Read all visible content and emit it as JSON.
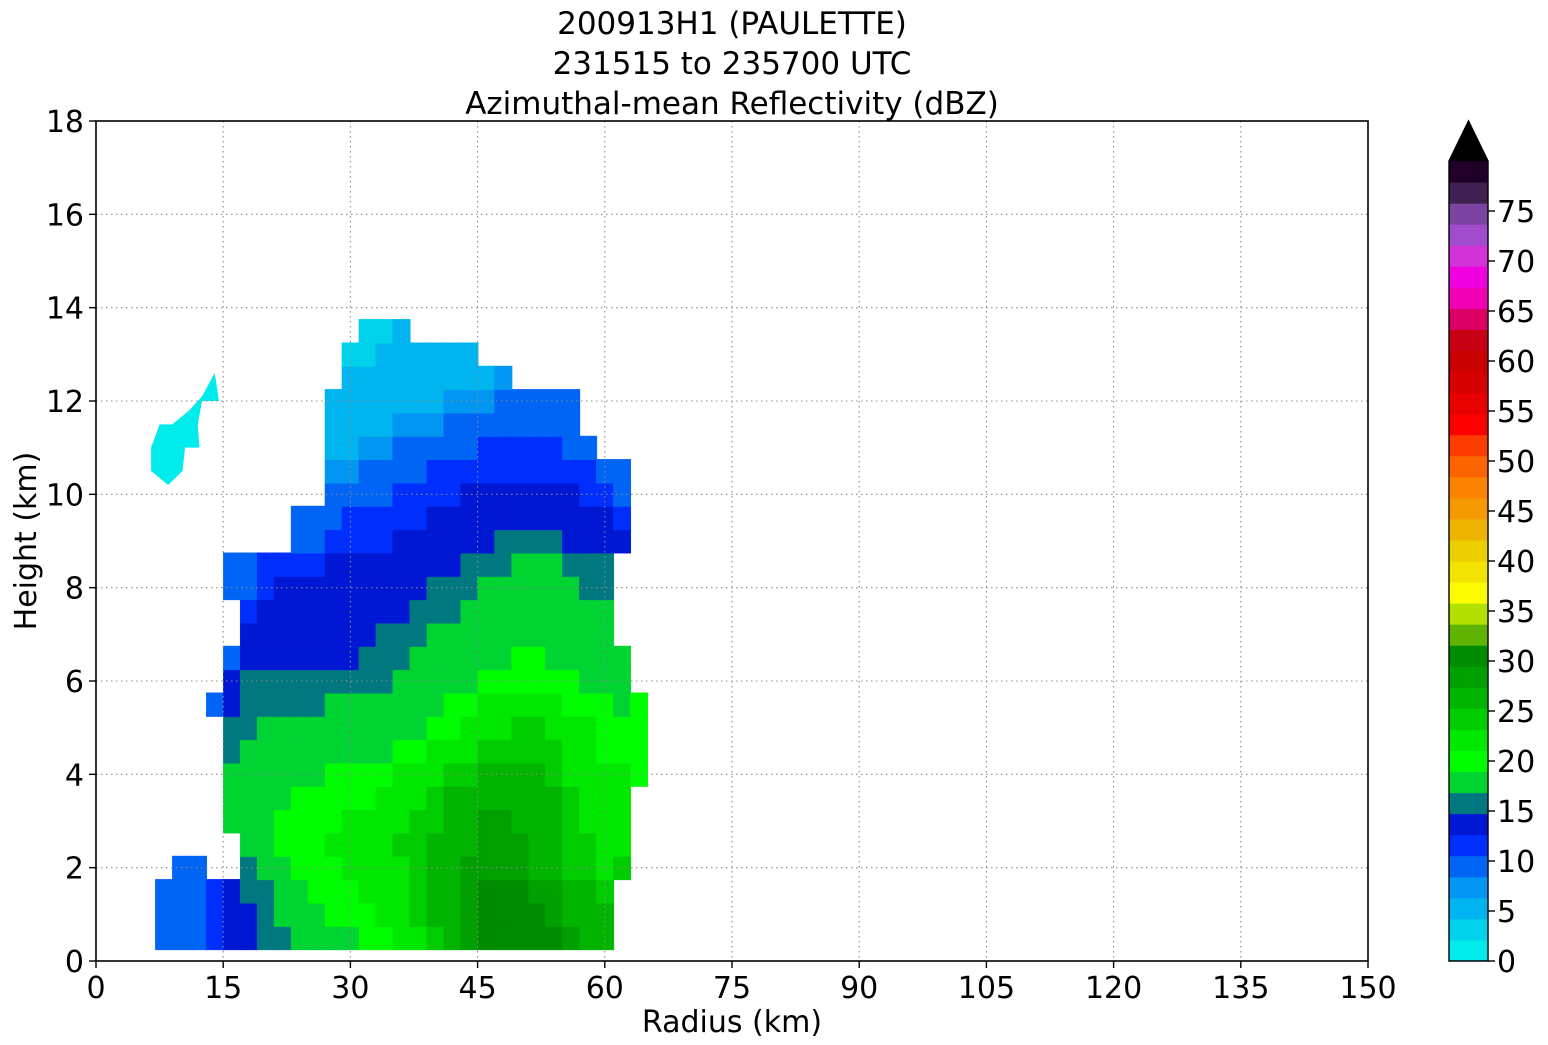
{
  "chart_data": {
    "type": "heatmap",
    "title_lines": [
      "200913H1 (PAULETTE)",
      "231515 to 235700 UTC",
      "Azimuthal-mean Reflectivity (dBZ)"
    ],
    "xlabel": "Radius (km)",
    "ylabel": "Height (km)",
    "xlim": [
      0,
      150
    ],
    "ylim": [
      0,
      18
    ],
    "xticks": [
      "0",
      "15",
      "30",
      "45",
      "60",
      "75",
      "90",
      "105",
      "120",
      "135",
      "150"
    ],
    "yticks": [
      "0",
      "2",
      "4",
      "6",
      "8",
      "10",
      "12",
      "14",
      "16",
      "18"
    ],
    "grid": true,
    "colorbar": {
      "min": 0,
      "max": 80,
      "step": 2.5,
      "ticks": [
        "0",
        "5",
        "10",
        "15",
        "20",
        "25",
        "30",
        "35",
        "40",
        "45",
        "50",
        "55",
        "60",
        "65",
        "70",
        "75"
      ],
      "extend": "max",
      "over_color": "#000000",
      "colors": [
        "#00ebeb",
        "#00d2ec",
        "#00b5ef",
        "#0096f2",
        "#0064f4",
        "#002efc",
        "#0018d4",
        "#007880",
        "#00d432",
        "#00fc00",
        "#00e800",
        "#00cc00",
        "#00b400",
        "#00a000",
        "#008c00",
        "#5eb400",
        "#b4e000",
        "#fcfc00",
        "#f2e400",
        "#ecce00",
        "#ecb400",
        "#f49a00",
        "#fc8200",
        "#fc6400",
        "#fc3c00",
        "#fc0000",
        "#e80000",
        "#d60000",
        "#c80000",
        "#c80014",
        "#dc0064",
        "#f200b4",
        "#f000e0",
        "#d232d6",
        "#a04ccc",
        "#7a44a0",
        "#402050",
        "#200028"
      ]
    },
    "x_km": [
      8,
      10,
      12,
      14,
      16,
      18,
      20,
      22,
      24,
      26,
      28,
      30,
      32,
      34,
      36,
      38,
      40,
      42,
      44,
      46,
      48,
      50,
      52,
      54,
      56,
      58,
      60,
      62,
      64
    ],
    "z_km": [
      0.5,
      1.0,
      1.5,
      2.0,
      2.5,
      3.0,
      3.5,
      4.0,
      4.5,
      5.0,
      5.5,
      6.0,
      6.5,
      7.0,
      7.5,
      8.0,
      8.5,
      9.0,
      9.5,
      10.0,
      10.5,
      11.0,
      11.5,
      12.0,
      12.5,
      13.0,
      13.5
    ],
    "dbz_rows": [
      [
        10,
        10,
        10,
        13,
        16,
        17,
        18,
        19,
        20,
        21,
        22,
        22,
        23,
        24,
        25,
        27,
        29,
        31,
        33,
        35,
        36,
        37,
        36,
        35,
        33,
        31,
        30,
        null,
        null
      ],
      [
        10,
        10,
        10,
        13,
        16,
        17,
        19,
        20,
        21,
        22,
        23,
        24,
        24,
        25,
        26,
        28,
        30,
        32,
        34,
        35,
        36,
        36,
        35,
        34,
        32,
        31,
        30,
        null,
        null
      ],
      [
        10,
        10,
        10,
        13,
        16,
        18,
        19,
        21,
        22,
        23,
        24,
        24,
        25,
        26,
        27,
        29,
        31,
        32,
        34,
        35,
        35,
        35,
        34,
        33,
        31,
        30,
        29,
        null,
        null
      ],
      [
        null,
        10,
        10,
        null,
        null,
        19,
        21,
        22,
        23,
        24,
        24,
        25,
        25,
        26,
        27,
        29,
        31,
        32,
        33,
        34,
        34,
        33,
        32,
        30,
        29,
        28,
        27,
        28,
        null
      ],
      [
        null,
        null,
        null,
        null,
        null,
        20,
        22,
        23,
        24,
        24,
        25,
        25,
        26,
        27,
        28,
        29,
        30,
        31,
        32,
        33,
        33,
        33,
        32,
        30,
        29,
        28,
        27,
        27,
        null
      ],
      [
        null,
        null,
        null,
        null,
        20,
        20,
        21,
        23,
        24,
        24,
        24,
        25,
        25,
        26,
        27,
        28,
        29,
        31,
        32,
        33,
        33,
        32,
        31,
        30,
        28,
        27,
        27,
        27,
        null
      ],
      [
        null,
        null,
        null,
        null,
        20,
        20,
        21,
        22,
        23,
        23,
        24,
        24,
        24,
        25,
        26,
        27,
        28,
        30,
        31,
        32,
        32,
        32,
        31,
        30,
        28,
        27,
        26,
        26,
        null
      ],
      [
        null,
        null,
        null,
        null,
        20,
        20,
        20,
        21,
        22,
        22,
        23,
        23,
        23,
        24,
        25,
        26,
        27,
        28,
        29,
        30,
        31,
        31,
        30,
        29,
        27,
        26,
        25,
        25,
        23
      ],
      [
        null,
        null,
        null,
        null,
        19,
        20,
        20,
        20,
        21,
        21,
        21,
        21,
        22,
        22,
        23,
        24,
        25,
        26,
        27,
        28,
        29,
        29,
        28,
        28,
        27,
        25,
        24,
        24,
        23
      ],
      [
        null,
        null,
        null,
        null,
        18,
        19,
        20,
        20,
        20,
        20,
        20,
        20,
        20,
        21,
        21,
        22,
        23,
        24,
        25,
        26,
        27,
        28,
        28,
        27,
        26,
        25,
        24,
        23,
        23
      ],
      [
        null,
        null,
        null,
        11,
        17,
        18,
        19,
        19,
        19,
        19,
        20,
        20,
        20,
        20,
        20,
        21,
        22,
        23,
        24,
        25,
        25,
        25,
        25,
        25,
        24,
        23,
        23,
        22,
        23
      ],
      [
        null,
        null,
        null,
        null,
        17,
        18,
        18,
        18,
        18,
        18,
        18,
        18,
        18,
        19,
        20,
        20,
        21,
        21,
        22,
        23,
        24,
        24,
        24,
        23,
        23,
        22,
        22,
        21,
        null
      ],
      [
        null,
        null,
        null,
        null,
        10,
        17,
        16,
        16,
        15,
        15,
        16,
        17,
        18,
        19,
        19,
        20,
        20,
        21,
        21,
        22,
        22,
        23,
        23,
        22,
        22,
        21,
        21,
        20,
        null
      ],
      [
        null,
        null,
        null,
        null,
        null,
        15,
        15,
        15,
        15,
        15,
        15,
        16,
        17,
        18,
        18,
        19,
        20,
        20,
        21,
        21,
        22,
        22,
        22,
        21,
        21,
        20,
        20,
        null,
        null
      ],
      [
        null,
        null,
        null,
        null,
        null,
        13,
        15,
        15,
        15,
        15,
        15,
        15,
        16,
        17,
        17,
        18,
        19,
        19,
        20,
        20,
        21,
        21,
        21,
        21,
        20,
        20,
        20,
        null,
        null
      ],
      [
        null,
        null,
        null,
        null,
        10,
        12,
        14,
        15,
        15,
        15,
        15,
        15,
        16,
        16,
        17,
        17,
        18,
        18,
        19,
        20,
        20,
        21,
        21,
        21,
        20,
        19,
        19,
        null,
        null
      ],
      [
        null,
        null,
        null,
        null,
        10,
        11,
        13,
        14,
        14,
        14,
        15,
        15,
        15,
        15,
        15,
        16,
        16,
        17,
        18,
        19,
        19,
        20,
        20,
        20,
        19,
        19,
        19,
        null,
        null
      ],
      [
        null,
        null,
        null,
        null,
        null,
        null,
        null,
        null,
        10,
        11,
        13,
        14,
        14,
        14,
        15,
        15,
        15,
        16,
        17,
        17,
        18,
        18,
        18,
        18,
        17,
        17,
        16,
        15,
        null
      ],
      [
        null,
        null,
        null,
        null,
        null,
        null,
        null,
        null,
        10,
        11,
        12,
        13,
        13,
        14,
        14,
        14,
        15,
        15,
        16,
        16,
        17,
        17,
        17,
        17,
        17,
        16,
        15,
        14,
        null
      ],
      [
        null,
        null,
        null,
        null,
        null,
        null,
        null,
        null,
        null,
        null,
        10,
        11,
        12,
        12,
        13,
        13,
        14,
        14,
        15,
        15,
        16,
        16,
        16,
        15,
        15,
        14,
        13,
        12,
        null
      ],
      [
        null,
        null,
        null,
        null,
        null,
        null,
        null,
        null,
        null,
        null,
        8,
        9,
        10,
        11,
        12,
        12,
        13,
        13,
        14,
        14,
        14,
        14,
        14,
        14,
        14,
        13,
        12,
        11,
        null
      ],
      [
        null,
        null,
        null,
        null,
        null,
        null,
        null,
        null,
        null,
        null,
        7,
        7,
        8,
        9,
        10,
        10,
        11,
        11,
        12,
        13,
        13,
        13,
        13,
        13,
        12,
        11,
        null,
        null,
        null
      ],
      [
        null,
        null,
        null,
        null,
        null,
        null,
        null,
        null,
        null,
        null,
        6,
        6,
        7,
        7,
        8,
        8,
        9,
        10,
        10,
        11,
        11,
        11,
        11,
        11,
        11,
        null,
        null,
        null,
        null
      ],
      [
        null,
        null,
        null,
        null,
        null,
        null,
        null,
        null,
        null,
        null,
        5,
        5,
        6,
        6,
        6,
        7,
        7,
        8,
        9,
        9,
        10,
        10,
        10,
        10,
        10,
        null,
        null,
        null,
        null
      ],
      [
        null,
        null,
        null,
        null,
        null,
        null,
        null,
        null,
        null,
        null,
        null,
        5,
        5,
        5,
        6,
        6,
        6,
        6,
        7,
        7,
        8,
        null,
        null,
        null,
        null,
        null,
        null,
        null,
        null
      ],
      [
        null,
        null,
        null,
        null,
        null,
        null,
        null,
        null,
        null,
        null,
        null,
        4,
        4,
        5,
        5,
        5,
        5,
        6,
        6,
        null,
        null,
        null,
        null,
        null,
        null,
        null,
        null,
        null,
        null
      ],
      [
        null,
        null,
        null,
        null,
        null,
        null,
        null,
        null,
        null,
        null,
        null,
        null,
        4,
        4,
        5,
        null,
        null,
        null,
        null,
        null,
        null,
        null,
        null,
        null,
        null,
        null,
        null,
        null,
        null
      ]
    ],
    "anvil_patch": {
      "dbz": 1,
      "outline_km": [
        [
          6.5,
          11.0
        ],
        [
          7.5,
          11.5
        ],
        [
          9.0,
          11.5
        ],
        [
          11.0,
          11.8
        ],
        [
          12.5,
          12.1
        ],
        [
          14.0,
          12.6
        ],
        [
          14.5,
          12.0
        ],
        [
          12.5,
          12.0
        ],
        [
          12.0,
          11.5
        ],
        [
          12.2,
          11.0
        ],
        [
          10.5,
          11.0
        ],
        [
          10.2,
          10.5
        ],
        [
          8.5,
          10.2
        ],
        [
          6.5,
          10.5
        ]
      ]
    }
  }
}
